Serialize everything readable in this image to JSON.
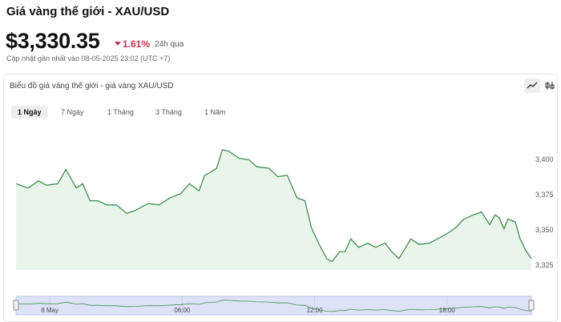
{
  "header": {
    "title": "Giá vàng thế giới - XAU/USD",
    "price": "$3,330.35",
    "change": "1.61%",
    "period": "24h qua",
    "updated": "Cập nhật gần nhất vào 08-05-2025 23:02 (UTC +7)"
  },
  "chart_card": {
    "title": "Biểu đồ giá vàng thế giới - giá vàng XAU/USD",
    "tabs": [
      "1 Ngày",
      "7 Ngày",
      "1 Tháng",
      "3 Tháng",
      "1 Năm"
    ],
    "active_tab": 0
  },
  "chart_data": {
    "type": "line",
    "color": "#3d8f4e",
    "fill": "#e9f5ea",
    "x": [
      -1.53,
      -0.98,
      -0.51,
      -0.15,
      0.36,
      0.73,
      1.2,
      1.49,
      1.82,
      2.18,
      2.58,
      3.02,
      3.49,
      3.85,
      4.47,
      4.95,
      5.45,
      5.93,
      6.33,
      6.76,
      7.02,
      7.27,
      7.56,
      7.82,
      8.11,
      8.58,
      9.02,
      9.38,
      9.93,
      10.33,
      10.76,
      11.2,
      11.56,
      11.85,
      12.18,
      12.55,
      12.8,
      13.13,
      13.38,
      13.64,
      14,
      14.4,
      14.76,
      15.2,
      15.49,
      15.82,
      16.36,
      16.73,
      17.2,
      17.56,
      18.04,
      18.4,
      18.76,
      19.2,
      19.56,
      19.93,
      20.18,
      20.36,
      20.58,
      20.76,
      21.09,
      21.31,
      21.56,
      21.82
    ],
    "values": [
      3383,
      3380,
      3385,
      3382,
      3383,
      3393,
      3380,
      3383,
      3371,
      3371,
      3368,
      3368,
      3362,
      3364,
      3369,
      3368,
      3373,
      3376,
      3383,
      3378,
      3389,
      3391,
      3394,
      3407,
      3406,
      3401,
      3400,
      3395,
      3394,
      3388,
      3389,
      3373,
      3371,
      3352,
      3341,
      3330,
      3328,
      3335,
      3335,
      3344,
      3338,
      3341,
      3338,
      3341,
      3335,
      3330,
      3344,
      3340,
      3341,
      3344,
      3348,
      3352,
      3358,
      3361,
      3363,
      3354,
      3361,
      3359,
      3351,
      3358,
      3356,
      3344,
      3336,
      3330
    ],
    "xlim": [
      -1.53,
      21.82
    ],
    "ylim": [
      3322,
      3428
    ],
    "yticks": [
      {
        "value": 3325,
        "label": "3,325"
      },
      {
        "value": 3350,
        "label": "3,350"
      },
      {
        "value": 3375,
        "label": "3,375"
      },
      {
        "value": 3400,
        "label": "3,400"
      }
    ],
    "xticks": [
      {
        "value": 0,
        "label": "8 May"
      },
      {
        "value": 6,
        "label": "06:00"
      },
      {
        "value": 12,
        "label": "12:00"
      },
      {
        "value": 18,
        "label": "18:00"
      }
    ],
    "grid": false
  }
}
